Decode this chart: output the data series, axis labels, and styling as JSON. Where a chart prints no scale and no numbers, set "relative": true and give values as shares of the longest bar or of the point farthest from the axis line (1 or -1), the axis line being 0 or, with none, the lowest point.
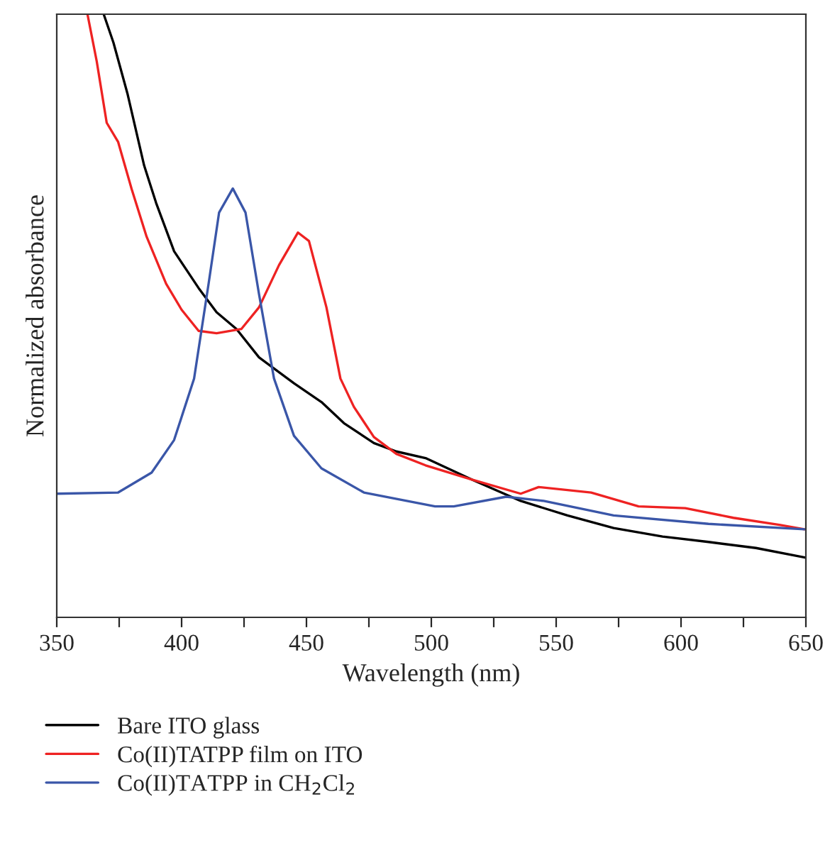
{
  "chart_data": {
    "type": "line",
    "relative": true,
    "xlabel": "Wavelength (nm)",
    "ylabel": "Normalized absorbance",
    "xlim": [
      350,
      650
    ],
    "xticks": [
      350,
      {
        "value": 375,
        "label": null
      },
      400,
      {
        "value": 425,
        "label": null
      },
      450,
      {
        "value": 475,
        "label": null
      },
      500,
      {
        "value": 525,
        "label": null
      },
      550,
      {
        "value": 575,
        "label": null
      },
      600,
      {
        "value": 625,
        "label": null
      },
      650
    ],
    "tick_labels": "x",
    "grid": false,
    "legend": "bottom",
    "marker": "none",
    "line_style": "solid",
    "series": [
      {
        "name": "Bare ITO glass",
        "color": "#000000",
        "x": [
          368.8,
          372.7,
          378.4,
          385,
          389.8,
          397,
          406.8,
          414,
          422,
          431,
          445,
          456,
          465,
          477,
          486,
          497.7,
          516.5,
          535.8,
          554.5,
          573,
          592.6,
          611,
          630,
          650
        ],
        "values": [
          1.0,
          0.953,
          0.867,
          0.749,
          0.687,
          0.607,
          0.546,
          0.506,
          0.478,
          0.431,
          0.388,
          0.357,
          0.322,
          0.289,
          0.275,
          0.264,
          0.228,
          0.193,
          0.169,
          0.148,
          0.134,
          0.125,
          0.115,
          0.099
        ]
      },
      {
        "name": "Co(II)TATPP film on ITO",
        "color": "#ee2222",
        "x": [
          362.3,
          366,
          370,
          374.6,
          380,
          386,
          393.8,
          400,
          406.8,
          414,
          423.9,
          431,
          439,
          446.6,
          451,
          458,
          463.6,
          469,
          477,
          486,
          497.7,
          516.5,
          535.8,
          543,
          564,
          583,
          601.7,
          621,
          639.8,
          649.4
        ],
        "values": [
          1.0,
          0.922,
          0.82,
          0.788,
          0.71,
          0.631,
          0.553,
          0.51,
          0.475,
          0.471,
          0.478,
          0.514,
          0.584,
          0.638,
          0.624,
          0.514,
          0.396,
          0.349,
          0.299,
          0.271,
          0.252,
          0.228,
          0.205,
          0.216,
          0.207,
          0.184,
          0.181,
          0.165,
          0.153,
          0.146
        ]
      },
      {
        "name": "Co(II)TATPP in CH$_{2}$Cl$_{2}$",
        "color": "#3a56a8",
        "x": [
          350,
          374.6,
          388,
          397,
          405,
          410.8,
          415,
          420.5,
          425.6,
          431,
          437,
          445,
          456,
          473,
          501.5,
          509,
          530,
          545,
          573,
          611,
          649.4
        ],
        "values": [
          0.205,
          0.207,
          0.24,
          0.294,
          0.396,
          0.553,
          0.671,
          0.711,
          0.671,
          0.536,
          0.396,
          0.301,
          0.247,
          0.207,
          0.184,
          0.184,
          0.2,
          0.193,
          0.169,
          0.155,
          0.146
        ]
      }
    ]
  }
}
